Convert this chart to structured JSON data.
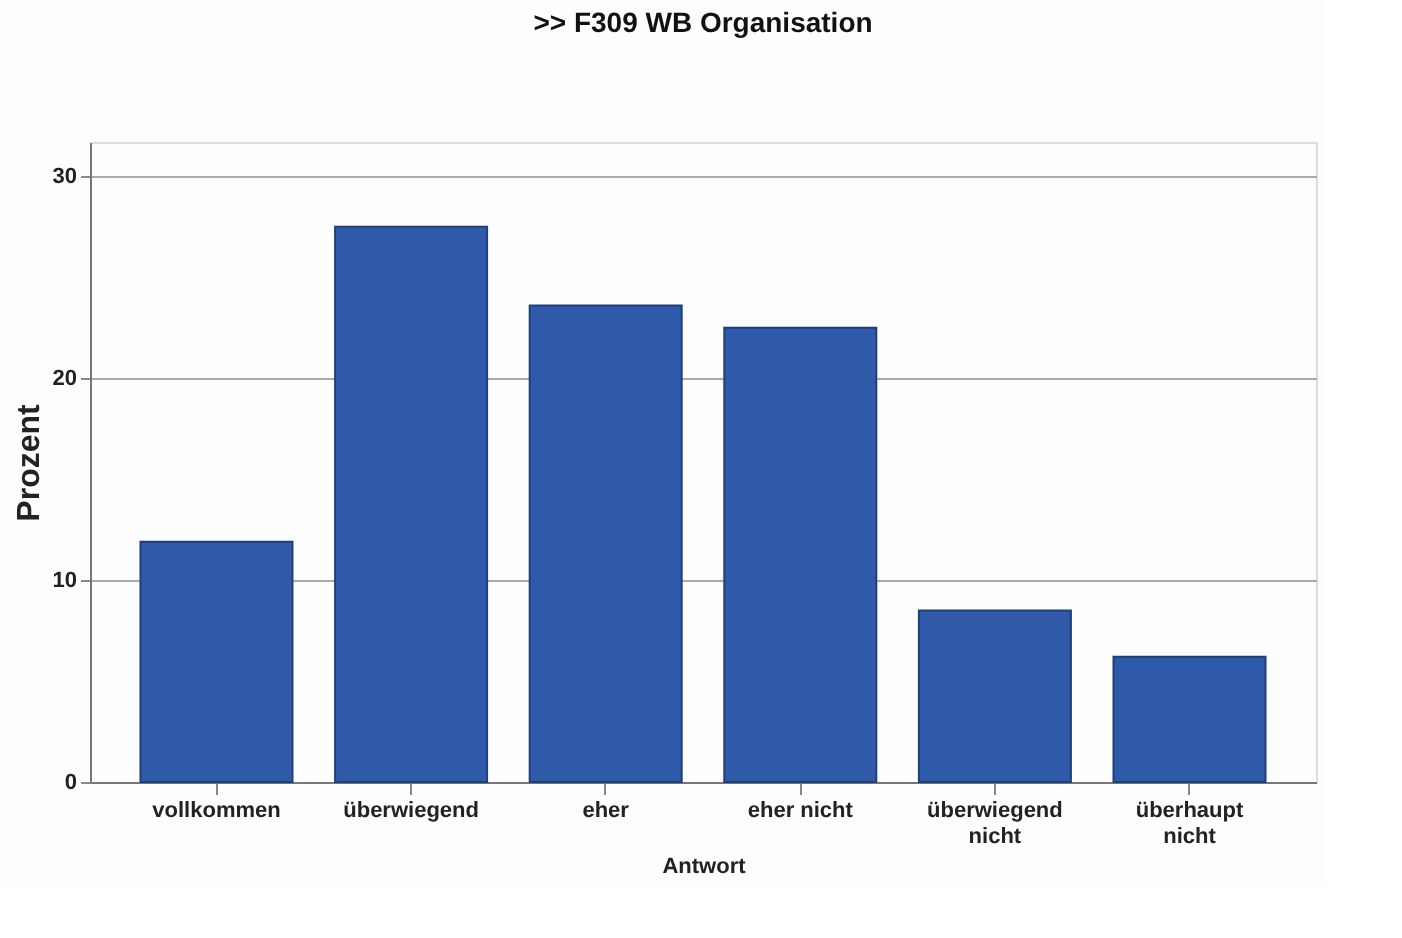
{
  "chart_data": {
    "type": "bar",
    "title": ">>  F309 WB Organisation",
    "xlabel": "Antwort",
    "ylabel": "Prozent",
    "categories": [
      "vollkommen",
      "überwiegend",
      "eher",
      "eher nicht",
      "überwiegend nicht",
      "überhaupt nicht"
    ],
    "values": [
      11.9,
      27.5,
      23.6,
      22.5,
      8.5,
      6.2
    ],
    "color": "#2f5aa9",
    "ylim": [
      0,
      31.7
    ],
    "yticks": [
      0,
      10,
      20,
      30
    ],
    "grid": "y",
    "legend": false
  }
}
